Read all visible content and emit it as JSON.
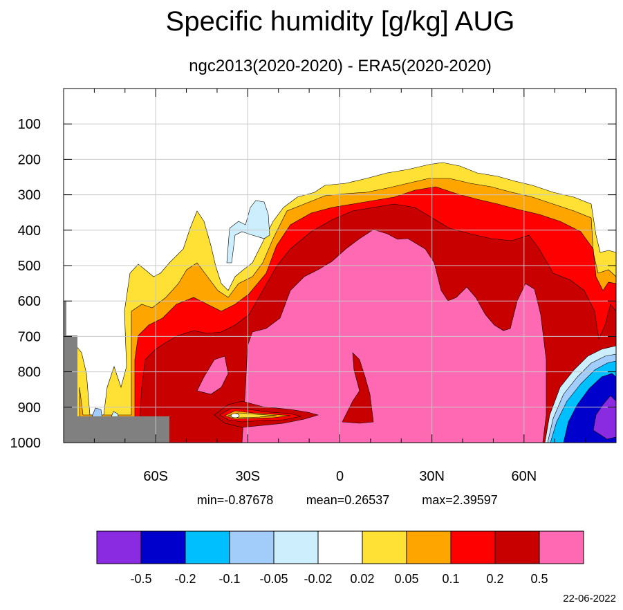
{
  "chart_data": {
    "type": "heatmap",
    "title": "Specific humidity [g/kg] AUG",
    "subtitle": "ngc2013(2020-2020) - ERA5(2020-2020)",
    "xlim": [
      -90,
      90
    ],
    "ylim": [
      1000,
      0
    ],
    "x_ticks": [
      {
        "value": -60,
        "label": "60S"
      },
      {
        "value": -30,
        "label": "30S"
      },
      {
        "value": 0,
        "label": "0"
      },
      {
        "value": 30,
        "label": "30N"
      },
      {
        "value": 60,
        "label": "60N"
      }
    ],
    "y_ticks": [
      {
        "value": 100,
        "label": "100"
      },
      {
        "value": 200,
        "label": "200"
      },
      {
        "value": 300,
        "label": "300"
      },
      {
        "value": 400,
        "label": "400"
      },
      {
        "value": 500,
        "label": "500"
      },
      {
        "value": 600,
        "label": "600"
      },
      {
        "value": 700,
        "label": "700"
      },
      {
        "value": 800,
        "label": "800"
      },
      {
        "value": 900,
        "label": "900"
      },
      {
        "value": 1000,
        "label": "1000"
      }
    ],
    "grid": true,
    "stats": {
      "min": "min=-0.87678",
      "mean": "mean=0.26537",
      "max": "max=2.39597"
    },
    "colorbar": {
      "colors": [
        "#8a2be2",
        "#0000cd",
        "#00bfff",
        "#a2cdfa",
        "#cdeefd",
        "#ffffff",
        "#ffe135",
        "#ffa500",
        "#ff0000",
        "#c80000",
        "#ff69b4"
      ],
      "levels": [
        "-0.5",
        "-0.2",
        "-0.1",
        "-0.05",
        "-0.02",
        "0.02",
        "0.05",
        "0.1",
        "0.2",
        "0.5"
      ]
    },
    "missing_color": "#808080",
    "date": "22-06-2022"
  }
}
